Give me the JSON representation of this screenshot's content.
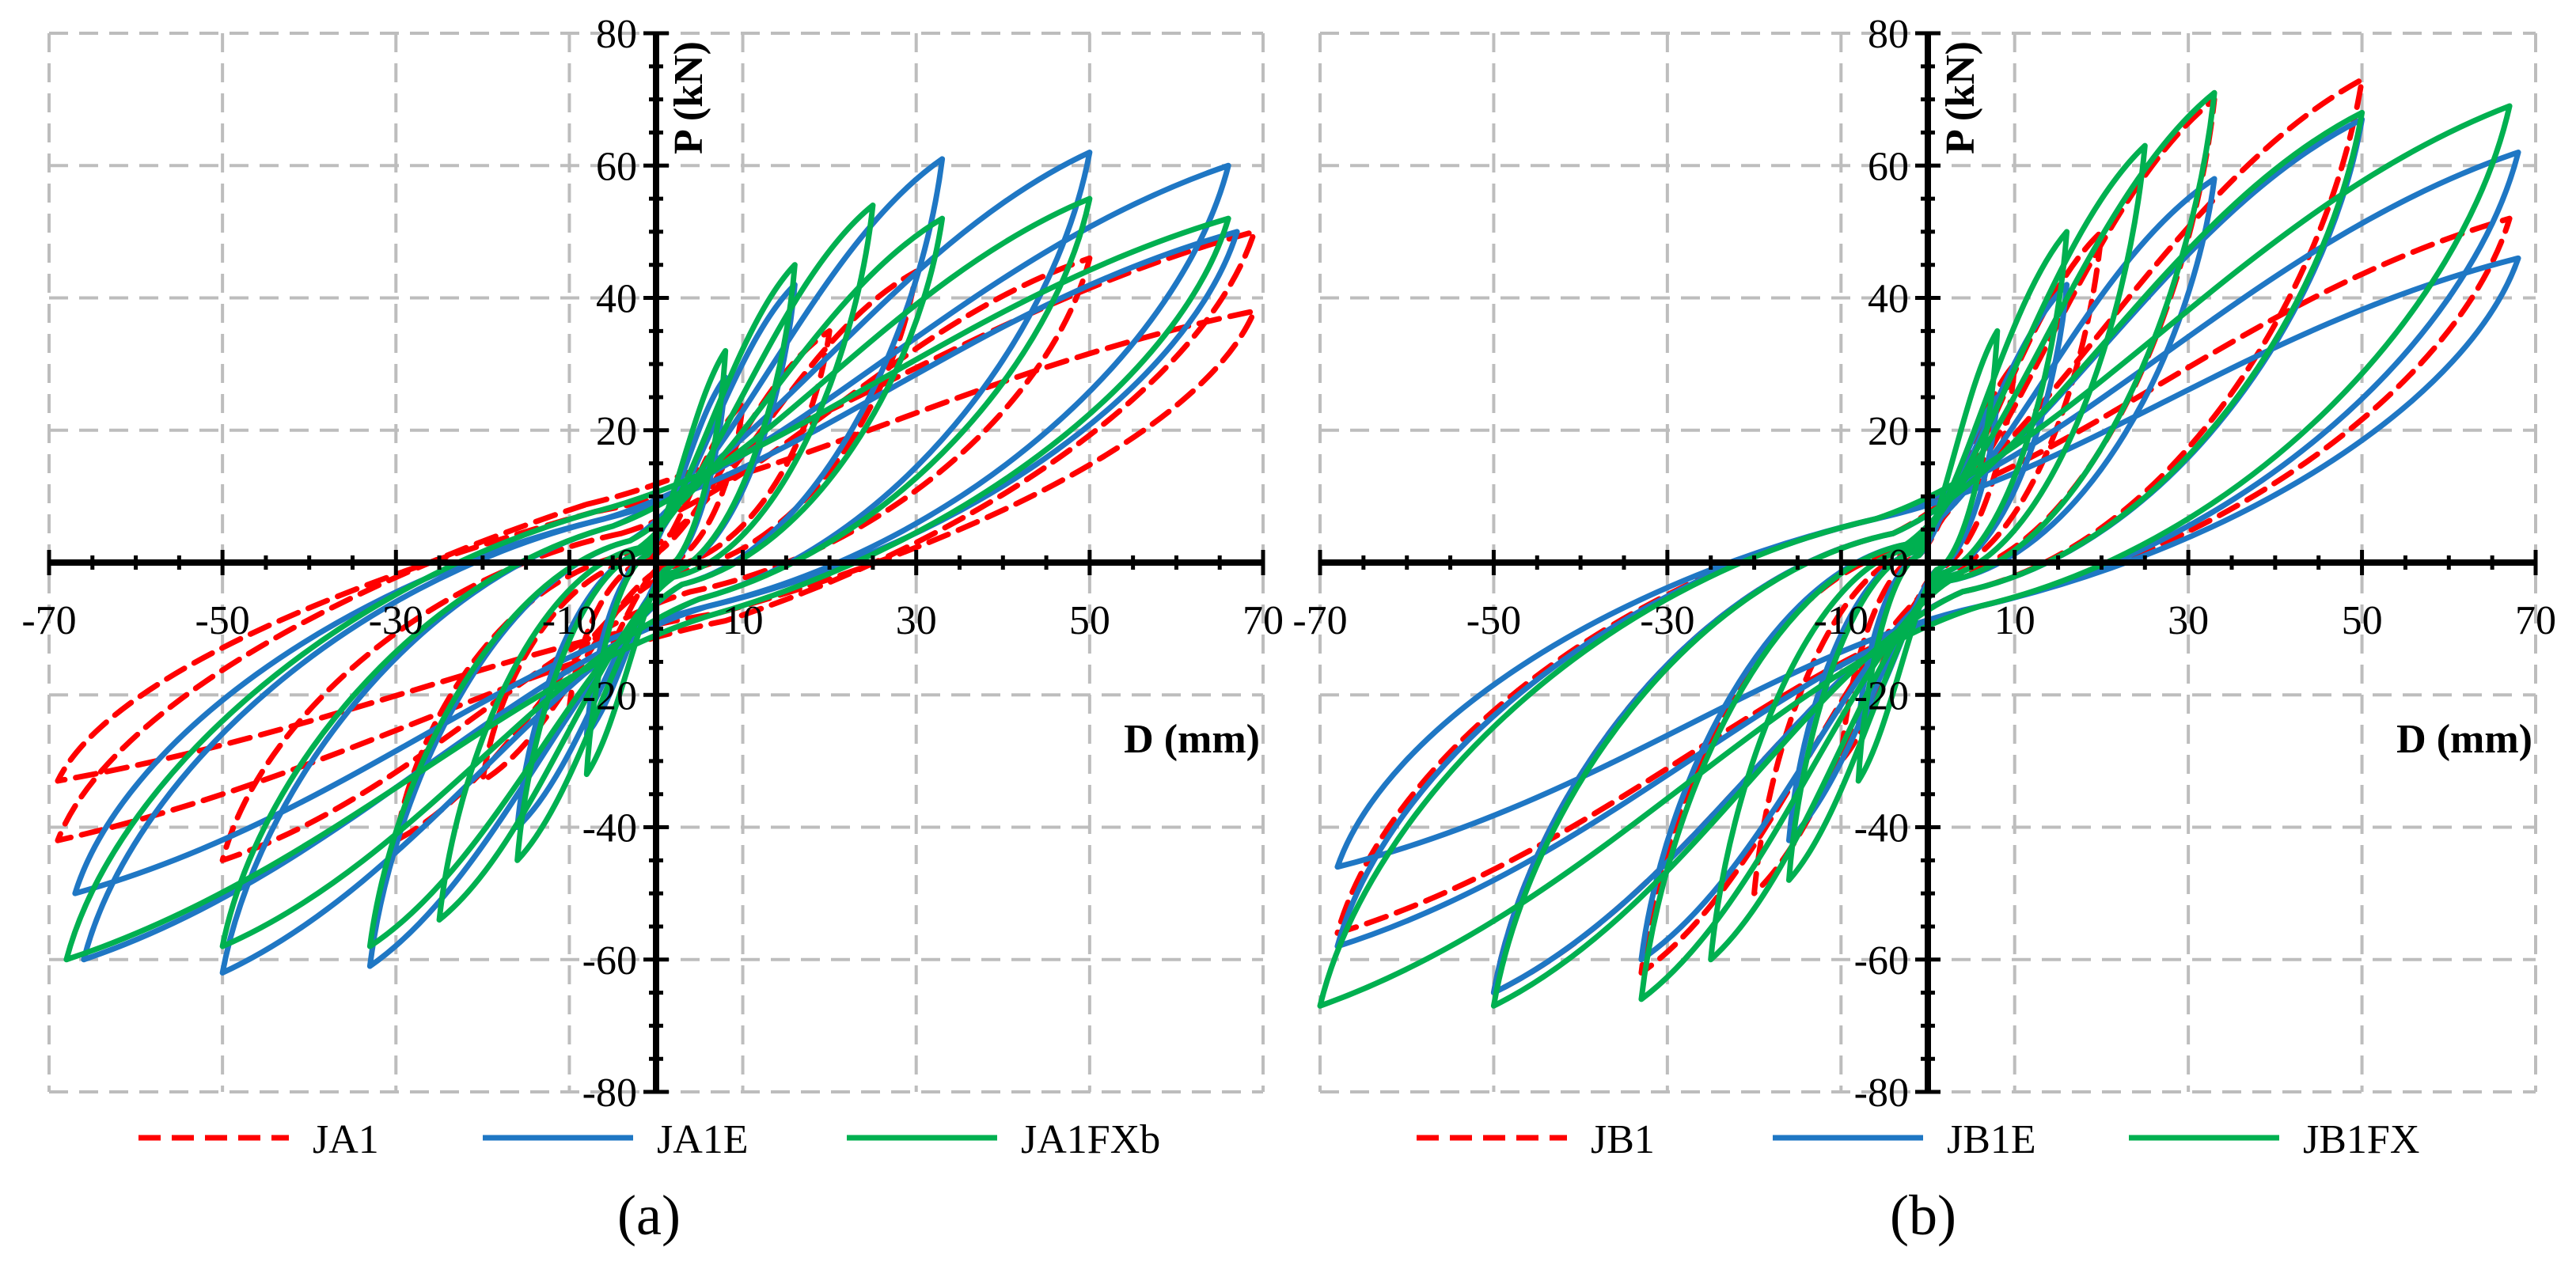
{
  "figure": {
    "panels": [
      {
        "caption": "(a)",
        "legend": [
          {
            "name": "JA1",
            "color": "#ff0000",
            "style": "dashed"
          },
          {
            "name": "JA1E",
            "color": "#1f77c4",
            "style": "solid"
          },
          {
            "name": "JA1FXb",
            "color": "#00b050",
            "style": "solid"
          }
        ]
      },
      {
        "caption": "(b)",
        "legend": [
          {
            "name": "JB1",
            "color": "#ff0000",
            "style": "dashed"
          },
          {
            "name": "JB1E",
            "color": "#1f77c4",
            "style": "solid"
          },
          {
            "name": "JB1FX",
            "color": "#00b050",
            "style": "solid"
          }
        ]
      }
    ]
  },
  "chart_data": [
    {
      "type": "line",
      "title": "(a)",
      "xlabel": "D (mm)",
      "ylabel": "P (kN)",
      "xlim": [
        -70,
        70
      ],
      "ylim": [
        -80,
        80
      ],
      "xticks": [
        -70,
        -50,
        -30,
        -10,
        10,
        30,
        50,
        70
      ],
      "yticks": [
        -80,
        -60,
        -40,
        -20,
        0,
        20,
        40,
        60,
        80
      ],
      "grid": true,
      "legend_position": "bottom",
      "series": [
        {
          "name": "JA1",
          "color": "#ff0000",
          "style": "dashed",
          "cycles": [
            {
              "dmax": 10,
              "pmax": 24,
              "dmin": -10,
              "pmin": -22,
              "r": 0.5
            },
            {
              "dmax": 20,
              "pmax": 35,
              "dmin": -20,
              "pmin": -33,
              "r": 0.7
            },
            {
              "dmax": 30,
              "pmax": 44,
              "dmin": -30,
              "pmin": -42,
              "r": 1.5
            },
            {
              "dmax": 50,
              "pmax": 46,
              "dmin": -50,
              "pmin": -45,
              "r": 4
            },
            {
              "dmax": 69,
              "pmax": 50,
              "dmin": -69,
              "pmin": -42,
              "r": 8
            },
            {
              "dmax": 69,
              "pmax": 38,
              "dmin": -69,
              "pmin": -33,
              "r": 7
            }
          ]
        },
        {
          "name": "JA1E",
          "color": "#1f77c4",
          "style": "solid",
          "cycles": [
            {
              "dmax": 8,
              "pmax": 28,
              "dmin": -8,
              "pmin": -26,
              "r": 1
            },
            {
              "dmax": 16,
              "pmax": 42,
              "dmin": -16,
              "pmin": -40,
              "r": 1.5
            },
            {
              "dmax": 33,
              "pmax": 61,
              "dmin": -33,
              "pmin": -61,
              "r": 3
            },
            {
              "dmax": 50,
              "pmax": 62,
              "dmin": -50,
              "pmin": -62,
              "r": 5
            },
            {
              "dmax": 66,
              "pmax": 60,
              "dmin": -66,
              "pmin": -60,
              "r": 6
            },
            {
              "dmax": 67,
              "pmax": 50,
              "dmin": -67,
              "pmin": -50,
              "r": 6
            }
          ]
        },
        {
          "name": "JA1FXb",
          "color": "#00b050",
          "style": "solid",
          "cycles": [
            {
              "dmax": 8,
              "pmax": 32,
              "dmin": -8,
              "pmin": -32,
              "r": 1
            },
            {
              "dmax": 16,
              "pmax": 45,
              "dmin": -16,
              "pmin": -45,
              "r": 1.5
            },
            {
              "dmax": 25,
              "pmax": 54,
              "dmin": -25,
              "pmin": -54,
              "r": 2
            },
            {
              "dmax": 33,
              "pmax": 52,
              "dmin": -33,
              "pmin": -58,
              "r": 3
            },
            {
              "dmax": 50,
              "pmax": 55,
              "dmin": -50,
              "pmin": -58,
              "r": 5
            },
            {
              "dmax": 66,
              "pmax": 52,
              "dmin": -68,
              "pmin": -60,
              "r": 7
            }
          ]
        }
      ]
    },
    {
      "type": "line",
      "title": "(b)",
      "xlabel": "D (mm)",
      "ylabel": "P (kN)",
      "xlim": [
        -70,
        70
      ],
      "ylim": [
        -80,
        80
      ],
      "xticks": [
        -70,
        -50,
        -30,
        -10,
        10,
        30,
        50,
        70
      ],
      "yticks": [
        -80,
        -60,
        -40,
        -20,
        0,
        20,
        40,
        60,
        80
      ],
      "grid": true,
      "legend_position": "bottom",
      "series": [
        {
          "name": "JB1",
          "color": "#ff0000",
          "style": "dashed",
          "cycles": [
            {
              "dmax": 10,
              "pmax": 30,
              "dmin": -10,
              "pmin": -30,
              "r": 1
            },
            {
              "dmax": 20,
              "pmax": 50,
              "dmin": -20,
              "pmin": -50,
              "r": 1.5
            },
            {
              "dmax": 33,
              "pmax": 70,
              "dmin": -33,
              "pmin": -62,
              "r": 2
            },
            {
              "dmax": 50,
              "pmax": 73,
              "dmin": -50,
              "pmin": -65,
              "r": 4
            },
            {
              "dmax": 67,
              "pmax": 52,
              "dmin": -68,
              "pmin": -56,
              "r": 6
            }
          ]
        },
        {
          "name": "JB1E",
          "color": "#1f77c4",
          "style": "solid",
          "cycles": [
            {
              "dmax": 8,
              "pmax": 25,
              "dmin": -8,
              "pmin": -25,
              "r": 1
            },
            {
              "dmax": 16,
              "pmax": 42,
              "dmin": -16,
              "pmin": -42,
              "r": 1.5
            },
            {
              "dmax": 33,
              "pmax": 58,
              "dmin": -33,
              "pmin": -60,
              "r": 2.5
            },
            {
              "dmax": 50,
              "pmax": 67,
              "dmin": -50,
              "pmin": -65,
              "r": 4
            },
            {
              "dmax": 68,
              "pmax": 62,
              "dmin": -68,
              "pmin": -58,
              "r": 6
            },
            {
              "dmax": 68,
              "pmax": 46,
              "dmin": -68,
              "pmin": -46,
              "r": 6
            }
          ]
        },
        {
          "name": "JB1FX",
          "color": "#00b050",
          "style": "solid",
          "cycles": [
            {
              "dmax": 8,
              "pmax": 35,
              "dmin": -8,
              "pmin": -33,
              "r": 1
            },
            {
              "dmax": 16,
              "pmax": 50,
              "dmin": -16,
              "pmin": -48,
              "r": 1.5
            },
            {
              "dmax": 25,
              "pmax": 63,
              "dmin": -25,
              "pmin": -60,
              "r": 2
            },
            {
              "dmax": 33,
              "pmax": 71,
              "dmin": -33,
              "pmin": -66,
              "r": 2.5
            },
            {
              "dmax": 50,
              "pmax": 68,
              "dmin": -50,
              "pmin": -67,
              "r": 4
            },
            {
              "dmax": 67,
              "pmax": 69,
              "dmin": -70,
              "pmin": -67,
              "r": 6
            }
          ]
        }
      ]
    }
  ]
}
